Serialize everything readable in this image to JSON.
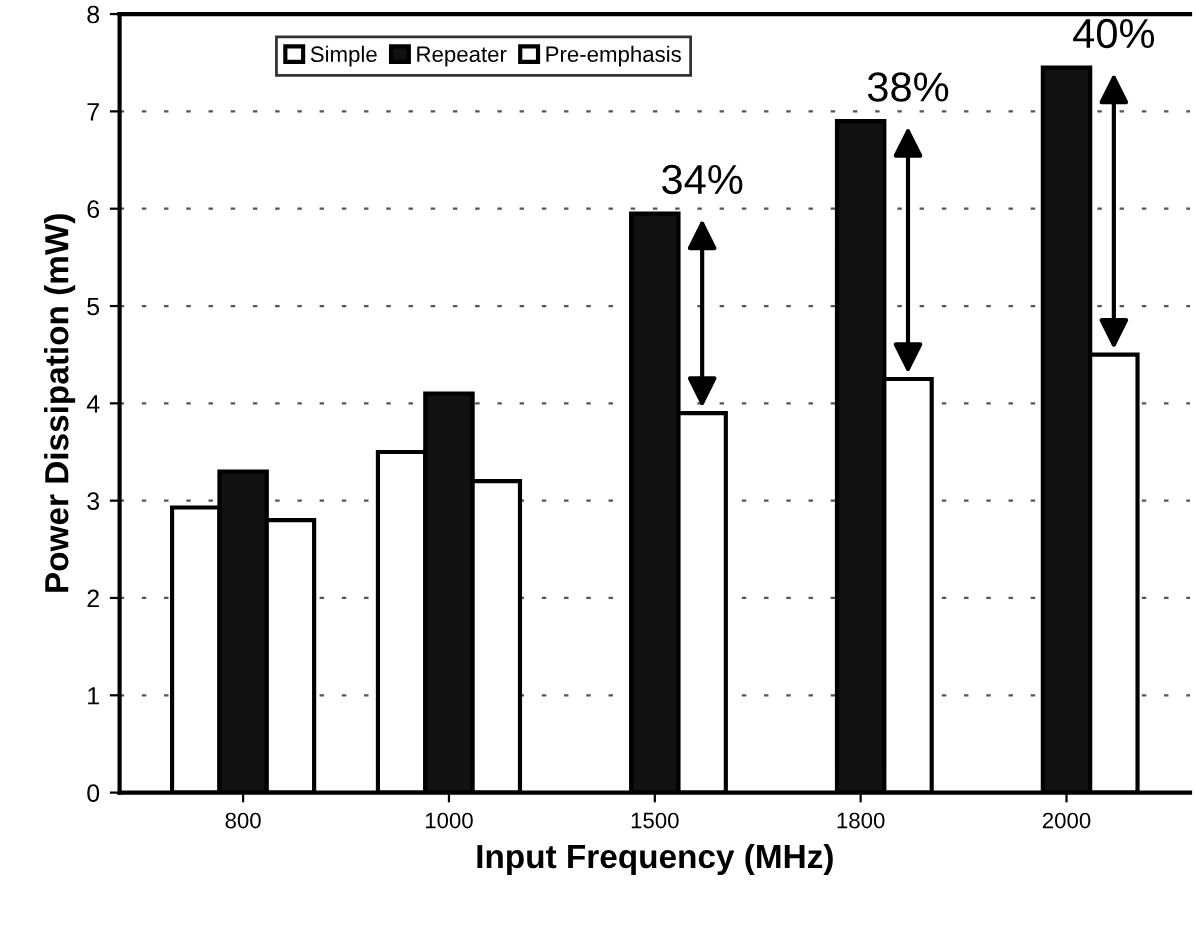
{
  "chart_data": {
    "type": "bar",
    "xlabel": "Input Frequency (MHz)",
    "ylabel": "Power Dissipation (mW)",
    "categories": [
      "800",
      "1000",
      "1500",
      "1800",
      "2000"
    ],
    "series": [
      {
        "name": "Simple",
        "color": "#ffffff",
        "values": [
          2.93,
          3.5,
          null,
          null,
          null
        ]
      },
      {
        "name": "Repeater",
        "color": "#111111",
        "values": [
          3.3,
          4.1,
          5.95,
          6.9,
          7.45
        ]
      },
      {
        "name": "Pre-emphasis",
        "color": "#ffffff",
        "values": [
          2.8,
          3.2,
          3.9,
          4.25,
          4.5
        ]
      }
    ],
    "ylim": [
      0,
      8
    ],
    "yticks": [
      0,
      1,
      2,
      3,
      4,
      5,
      6,
      7,
      8
    ],
    "grid": "y",
    "legend": "top",
    "annotations": [
      {
        "text": "34%",
        "x": "1500",
        "y": 5.95
      },
      {
        "text": "38%",
        "x": "1800",
        "y": 6.9
      },
      {
        "text": "40%",
        "x": "2000",
        "y": 7.45
      }
    ]
  }
}
